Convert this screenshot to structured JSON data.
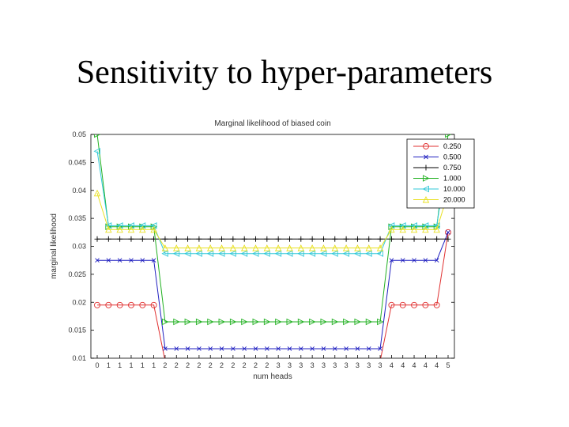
{
  "slide": {
    "title": "Sensitivity to hyper-parameters"
  },
  "chart_data": {
    "type": "line",
    "title": "Marginal likelihood of biased coin",
    "xlabel": "num heads",
    "ylabel": "marginal likelihood",
    "ylim": [
      0.01,
      0.05
    ],
    "yticks": [
      0.01,
      0.015,
      0.02,
      0.025,
      0.03,
      0.035,
      0.04,
      0.045,
      0.05
    ],
    "ytick_labels": [
      "0.01",
      "0.015",
      "0.02",
      "0.025",
      "0.03",
      "0.035",
      "0.04",
      "0.045",
      "0.05"
    ],
    "xticks": [
      "0",
      "1",
      "1",
      "1",
      "1",
      "1",
      "2",
      "2",
      "2",
      "2",
      "2",
      "2",
      "2",
      "2",
      "2",
      "2",
      "3",
      "3",
      "3",
      "3",
      "3",
      "3",
      "3",
      "3",
      "3",
      "3",
      "4",
      "4",
      "4",
      "4",
      "4",
      "5"
    ],
    "grid": false,
    "legend": "top-right",
    "series": [
      {
        "name": "0.250",
        "color": "#e03030",
        "marker": "circle",
        "values": [
          0.0195,
          0.0195,
          0.0195,
          0.0195,
          0.0195,
          0.0195,
          0.0095,
          0.0095,
          0.0095,
          0.0095,
          0.0095,
          0.0095,
          0.0095,
          0.0095,
          0.0095,
          0.0095,
          0.0095,
          0.0095,
          0.0095,
          0.0095,
          0.0095,
          0.0095,
          0.0095,
          0.0095,
          0.0095,
          0.0095,
          0.0195,
          0.0195,
          0.0195,
          0.0195,
          0.0195,
          0.0325
        ]
      },
      {
        "name": "0.500",
        "color": "#2020c0",
        "marker": "x",
        "values": [
          0.0275,
          0.0275,
          0.0275,
          0.0275,
          0.0275,
          0.0275,
          0.0117,
          0.0117,
          0.0117,
          0.0117,
          0.0117,
          0.0117,
          0.0117,
          0.0117,
          0.0117,
          0.0117,
          0.0117,
          0.0117,
          0.0117,
          0.0117,
          0.0117,
          0.0117,
          0.0117,
          0.0117,
          0.0117,
          0.0117,
          0.0275,
          0.0275,
          0.0275,
          0.0275,
          0.0275,
          0.0325
        ]
      },
      {
        "name": "0.750",
        "color": "#000000",
        "marker": "plus",
        "values": [
          0.0313,
          0.0313,
          0.0313,
          0.0313,
          0.0313,
          0.0313,
          0.0313,
          0.0313,
          0.0313,
          0.0313,
          0.0313,
          0.0313,
          0.0313,
          0.0313,
          0.0313,
          0.0313,
          0.0313,
          0.0313,
          0.0313,
          0.0313,
          0.0313,
          0.0313,
          0.0313,
          0.0313,
          0.0313,
          0.0313,
          0.0313,
          0.0313,
          0.0313,
          0.0313,
          0.0313,
          0.0313
        ]
      },
      {
        "name": "1.000",
        "color": "#20b020",
        "marker": "triangle-right",
        "values": [
          0.05,
          0.0335,
          0.0335,
          0.0335,
          0.0335,
          0.0335,
          0.0165,
          0.0165,
          0.0165,
          0.0165,
          0.0165,
          0.0165,
          0.0165,
          0.0165,
          0.0165,
          0.0165,
          0.0165,
          0.0165,
          0.0165,
          0.0165,
          0.0165,
          0.0165,
          0.0165,
          0.0165,
          0.0165,
          0.0165,
          0.0335,
          0.0335,
          0.0335,
          0.0335,
          0.0335,
          0.05
        ]
      },
      {
        "name": "10.000",
        "color": "#30c8d8",
        "marker": "triangle-left",
        "values": [
          0.047,
          0.0337,
          0.0337,
          0.0337,
          0.0337,
          0.0337,
          0.0287,
          0.0287,
          0.0287,
          0.0287,
          0.0287,
          0.0287,
          0.0287,
          0.0287,
          0.0287,
          0.0287,
          0.0287,
          0.0287,
          0.0287,
          0.0287,
          0.0287,
          0.0287,
          0.0287,
          0.0287,
          0.0287,
          0.0287,
          0.0337,
          0.0337,
          0.0337,
          0.0337,
          0.0337,
          0.047
        ]
      },
      {
        "name": "20.000",
        "color": "#e8e020",
        "marker": "triangle-up",
        "values": [
          0.0395,
          0.033,
          0.033,
          0.033,
          0.033,
          0.033,
          0.0297,
          0.0297,
          0.0297,
          0.0297,
          0.0297,
          0.0297,
          0.0297,
          0.0297,
          0.0297,
          0.0297,
          0.0297,
          0.0297,
          0.0297,
          0.0297,
          0.0297,
          0.0297,
          0.0297,
          0.0297,
          0.0297,
          0.0297,
          0.033,
          0.033,
          0.033,
          0.033,
          0.033,
          0.0395
        ]
      }
    ]
  }
}
